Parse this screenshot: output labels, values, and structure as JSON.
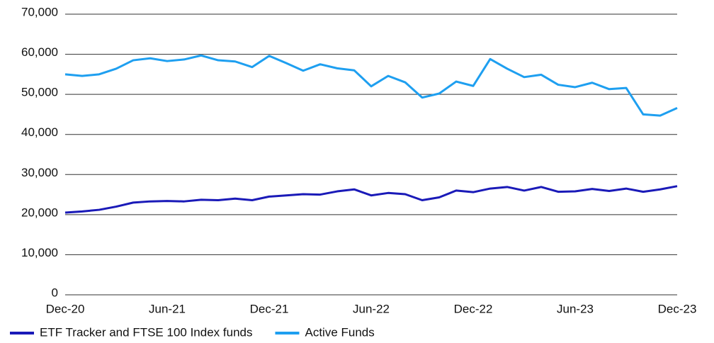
{
  "chart_data": {
    "type": "line",
    "categories": [
      "Dec-20",
      null,
      null,
      null,
      null,
      null,
      "Jun-21",
      null,
      null,
      null,
      null,
      null,
      "Dec-21",
      null,
      null,
      null,
      null,
      null,
      "Jun-22",
      null,
      null,
      null,
      null,
      null,
      "Dec-22",
      null,
      null,
      null,
      null,
      null,
      "Jun-23",
      null,
      null,
      null,
      null,
      null,
      "Dec-23"
    ],
    "series": [
      {
        "name": "ETF Tracker and FTSE 100 Index funds",
        "color": "#1a1ab8",
        "values": [
          20500,
          20800,
          21200,
          22000,
          23000,
          23300,
          23400,
          23300,
          23700,
          23600,
          24000,
          23600,
          24500,
          24800,
          25100,
          25000,
          25800,
          26300,
          24800,
          25400,
          25100,
          23600,
          24300,
          26000,
          25600,
          26500,
          26900,
          26000,
          26900,
          25700,
          25800,
          26400,
          25900,
          26500,
          25700,
          26300,
          27100
        ]
      },
      {
        "name": "Active Funds",
        "color": "#1e9ff0",
        "values": [
          55000,
          54600,
          55000,
          56400,
          58500,
          59000,
          58300,
          58700,
          59700,
          58500,
          58200,
          56800,
          59600,
          57800,
          55900,
          57500,
          56500,
          56000,
          52000,
          54600,
          53000,
          49200,
          50200,
          53200,
          52100,
          58800,
          56400,
          54300,
          54900,
          52400,
          51800,
          52900,
          51300,
          51600,
          45000,
          44700,
          46600
        ]
      }
    ],
    "ylim": [
      0,
      70000
    ],
    "yticks": [
      0,
      {
        "value": 10000,
        "label": "10,000"
      },
      {
        "value": 20000,
        "label": "20,000"
      },
      {
        "value": 30000,
        "label": "30,000"
      },
      {
        "value": 40000,
        "label": "40,000"
      },
      {
        "value": 50000,
        "label": "50,000"
      },
      {
        "value": 60000,
        "label": "60,000"
      },
      {
        "value": 70000,
        "label": "70,000"
      }
    ],
    "grid": true,
    "legend": "bottom-left"
  }
}
